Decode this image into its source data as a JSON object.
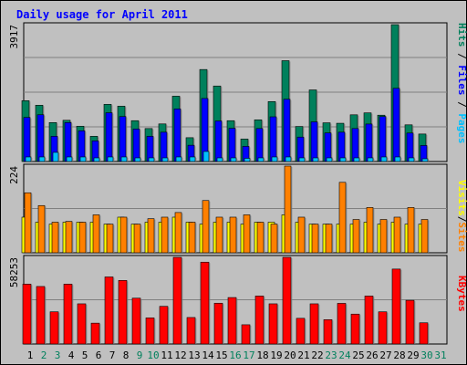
{
  "chart_data": {
    "type": "bar",
    "title": "Daily usage for April 2011",
    "days": [
      "1",
      "2",
      "3",
      "4",
      "5",
      "6",
      "7",
      "8",
      "9",
      "10",
      "11",
      "12",
      "13",
      "14",
      "15",
      "16",
      "17",
      "18",
      "19",
      "20",
      "21",
      "22",
      "23",
      "24",
      "25",
      "26",
      "27",
      "28",
      "29",
      "30",
      "31"
    ],
    "weekend_days": [
      "2",
      "3",
      "9",
      "10",
      "16",
      "17",
      "23",
      "24",
      "30",
      "31"
    ],
    "colors": {
      "hits": "#00805c",
      "files": "#0000ff",
      "pages": "#00c0ff",
      "visits": "#ffff00",
      "sites": "#ff8000",
      "kbytes": "#ff0000",
      "weekday_label": "#000000",
      "weekend_label": "#00805c",
      "title": "#0000ff"
    },
    "panels": [
      {
        "id": "hits-files-pages",
        "ymax_label": "3917",
        "ymax": 3917,
        "legend": [
          {
            "text": "Pages",
            "color": "#00c0ff"
          },
          {
            "text": "Files",
            "color": "#0000ff"
          },
          {
            "text": "Hits",
            "color": "#00805c"
          }
        ],
        "series": [
          {
            "name": "Hits",
            "color": "#00805c",
            "values": [
              1741,
              1611,
              1115,
              1180,
              1010,
              722,
              1636,
              1584,
              1169,
              944,
              1076,
              1870,
              682,
              2633,
              2161,
              1169,
              643,
              1193,
              1715,
              2886,
              1003,
              2049,
              1108,
              1095,
              1337,
              1392,
              1326,
              3917,
              1050,
              787
            ]
          },
          {
            "name": "Files",
            "color": "#0000ff",
            "values": [
              1261,
              1338,
              722,
              1115,
              879,
              591,
              1396,
              1287,
              930,
              722,
              839,
              1505,
              466,
              1804,
              1161,
              951,
              433,
              944,
              1279,
              1782,
              699,
              1135,
              818,
              839,
              944,
              1073,
              1287,
              2095,
              815,
              459
            ]
          },
          {
            "name": "Pages",
            "color": "#00c0ff",
            "values": [
              131,
              131,
              262,
              131,
              131,
              105,
              131,
              131,
              105,
              105,
              105,
              131,
              131,
              288,
              105,
              105,
              92,
              105,
              131,
              131,
              105,
              105,
              105,
              105,
              105,
              105,
              131,
              131,
              105,
              79
            ]
          }
        ]
      },
      {
        "id": "visits-sites",
        "ymax_label": "224",
        "ymax": 224,
        "legend": [
          {
            "text": "Sites",
            "color": "#ff8000"
          },
          {
            "text": "/",
            "color": "#000000"
          },
          {
            "text": "Visits",
            "color": "#ffff00"
          }
        ],
        "series": [
          {
            "name": "Visits",
            "color": "#ffff00",
            "values": [
              92,
              79,
              74,
              79,
              79,
              79,
              74,
              92,
              74,
              79,
              79,
              92,
              79,
              74,
              79,
              79,
              74,
              79,
              79,
              98,
              79,
              74,
              74,
              74,
              74,
              79,
              74,
              79,
              74,
              74
            ]
          },
          {
            "name": "Sites",
            "color": "#ff8000",
            "values": [
              155,
              122,
              79,
              81,
              79,
              98,
              74,
              92,
              74,
              88,
              92,
              104,
              79,
              135,
              92,
              92,
              98,
              79,
              74,
              224,
              92,
              74,
              74,
              182,
              86,
              117,
              86,
              92,
              117,
              86
            ]
          }
        ]
      },
      {
        "id": "kbytes",
        "ymax_label": "58253",
        "ymax": 58253,
        "legend": [
          {
            "text": "KBytes",
            "color": "#ff0000"
          }
        ],
        "series": [
          {
            "name": "KBytes",
            "color": "#ff0000",
            "values": [
              40232,
              38660,
              21633,
              40232,
              27005,
              14015,
              45075,
              42716,
              30807,
              17573,
              25310,
              58253,
              17815,
              55016,
              27428,
              31234,
              12927,
              32231,
              27005,
              58253,
              17271,
              27005,
              16364,
              27307,
              20093,
              32231,
              21633,
              50364,
              29357,
              14257
            ]
          }
        ]
      }
    ]
  }
}
